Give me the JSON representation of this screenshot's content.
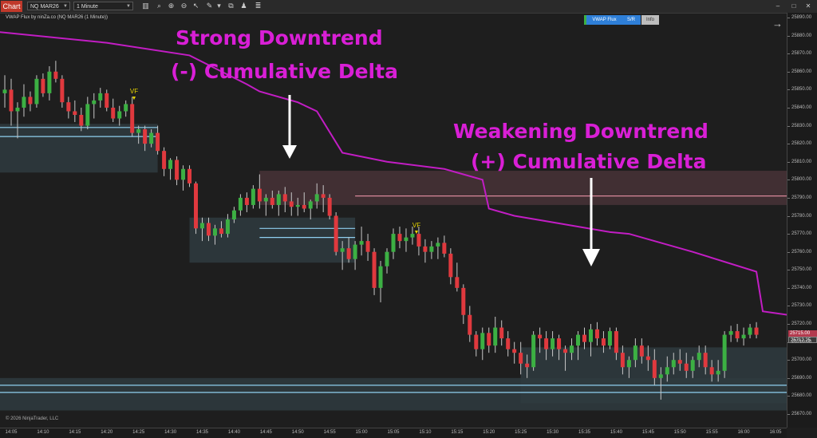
{
  "toolbar": {
    "chart_tab": "Chart",
    "instrument": "NQ MAR26",
    "interval": "1 Minute"
  },
  "indicator_label": "VWAP Flux by ninZa.co (NQ MAR26 (1 Minute))",
  "buttons": {
    "vwap_flux": "VWAP Flux",
    "sr": "S/R",
    "info": "Info"
  },
  "copyright": "© 2026 NinjaTrader, LLC",
  "annotations": {
    "strong_line1": "Strong Downtrend",
    "strong_line2": "(-) Cumulative Delta",
    "weak_line1": "Weakening Downtrend",
    "weak_line2": "(+) Cumulative Delta"
  },
  "signals": [
    {
      "label": "VF"
    },
    {
      "label": "VF"
    }
  ],
  "price_tags": {
    "last": "25715.00",
    "bid": "25712.25"
  },
  "colors": {
    "background": "#1e1e1e",
    "bull": "#3cb043",
    "bear": "#e0393e",
    "vwap": "#c21dc4",
    "annotation": "#d91fd6",
    "signal": "#e6d400",
    "support_zone": "#2f3b40",
    "resistance_zone": "#4a3338",
    "level_line": "#8fd0f0",
    "resistance_line": "#d8879a"
  },
  "chart_data": {
    "type": "candlestick",
    "instrument": "NQ MAR26",
    "timeframe": "1 Minute",
    "ylim": [
      25665,
      25900
    ],
    "yticks": [
      25670,
      25680,
      25690,
      25700,
      25710,
      25720,
      25730,
      25740,
      25750,
      25760,
      25770,
      25780,
      25790,
      25800,
      25810,
      25820,
      25830,
      25840,
      25850,
      25860,
      25870,
      25880,
      25890
    ],
    "xlim_minutes": [
      843,
      968
    ],
    "xticks": [
      "14:05",
      "14:10",
      "14:15",
      "14:20",
      "14:25",
      "14:30",
      "14:35",
      "14:40",
      "14:45",
      "14:50",
      "14:55",
      "15:00",
      "15:05",
      "15:10",
      "15:15",
      "15:20",
      "15:25",
      "15:30",
      "15:35",
      "15:40",
      "15:45",
      "15:50",
      "15:55",
      "16:00",
      "16:05"
    ],
    "vwap_line": [
      [
        843,
        25882
      ],
      [
        860,
        25876
      ],
      [
        873,
        25869
      ],
      [
        882,
        25853
      ],
      [
        884,
        25849
      ],
      [
        890,
        25843
      ],
      [
        893,
        25838
      ],
      [
        897,
        25815
      ],
      [
        904,
        25810
      ],
      [
        913,
        25806
      ],
      [
        919,
        25800
      ],
      [
        920,
        25784
      ],
      [
        924,
        25780
      ],
      [
        929,
        25777
      ],
      [
        939,
        25771
      ],
      [
        942,
        25770
      ],
      [
        952,
        25760
      ],
      [
        962,
        25749
      ],
      [
        963,
        25727
      ],
      [
        971,
        25723
      ],
      [
        980,
        25720
      ],
      [
        984,
        25717
      ],
      [
        986,
        25717
      ]
    ],
    "support_zones": [
      {
        "t0": 843,
        "t1": 868,
        "low": 25804,
        "high": 25831
      },
      {
        "t0": 873,
        "t1": 899,
        "low": 25754,
        "high": 25779
      },
      {
        "t0": 925,
        "t1": 967,
        "low": 25676,
        "high": 25707
      },
      {
        "t0": 843,
        "t1": 967,
        "low": 25672,
        "high": 25690
      }
    ],
    "resistance_zones": [
      {
        "t0": 884,
        "t1": 986,
        "low": 25786,
        "high": 25805
      },
      {
        "t0": 967,
        "t1": 986,
        "low": 25707,
        "high": 25722
      }
    ],
    "level_lines": [
      {
        "t0": 843,
        "t1": 868,
        "price": 25829
      },
      {
        "t0": 843,
        "t1": 868,
        "price": 25824
      },
      {
        "t0": 884,
        "t1": 899,
        "price": 25773
      },
      {
        "t0": 884,
        "t1": 899,
        "price": 25768
      },
      {
        "t0": 843,
        "t1": 967,
        "price": 25686
      },
      {
        "t0": 843,
        "t1": 967,
        "price": 25682
      },
      {
        "t0": 967,
        "t1": 986,
        "price": 25702
      },
      {
        "t0": 967,
        "t1": 986,
        "price": 25700
      }
    ],
    "resistance_lines": [
      {
        "t0": 899,
        "t1": 986,
        "price": 25791
      },
      {
        "t0": 967,
        "t1": 986,
        "price": 25714
      }
    ],
    "vf_signals": [
      {
        "t": 865,
        "price": 25841
      },
      {
        "t": 911,
        "price": 25773
      }
    ],
    "candles": [
      [
        844,
        25848,
        25858,
        25840,
        25850
      ],
      [
        845,
        25850,
        25856,
        25830,
        25838
      ],
      [
        846,
        25838,
        25843,
        25823,
        25840
      ],
      [
        847,
        25840,
        25853,
        25835,
        25846
      ],
      [
        848,
        25846,
        25849,
        25838,
        25842
      ],
      [
        849,
        25842,
        25858,
        25840,
        25856
      ],
      [
        850,
        25856,
        25859,
        25846,
        25848
      ],
      [
        851,
        25848,
        25863,
        25844,
        25860
      ],
      [
        852,
        25860,
        25866,
        25854,
        25856
      ],
      [
        853,
        25856,
        25858,
        25840,
        25843
      ],
      [
        854,
        25843,
        25846,
        25834,
        25838
      ],
      [
        855,
        25838,
        25844,
        25832,
        25836
      ],
      [
        856,
        25836,
        25840,
        25827,
        25830
      ],
      [
        857,
        25830,
        25846,
        25828,
        25842
      ],
      [
        858,
        25842,
        25848,
        25834,
        25844
      ],
      [
        859,
        25844,
        25851,
        25840,
        25848
      ],
      [
        860,
        25848,
        25850,
        25838,
        25840
      ],
      [
        861,
        25840,
        25845,
        25832,
        25834
      ],
      [
        862,
        25834,
        25841,
        25830,
        25838
      ],
      [
        863,
        25838,
        25844,
        25835,
        25842
      ],
      [
        864,
        25842,
        25846,
        25824,
        25826
      ],
      [
        865,
        25826,
        25830,
        25820,
        25828
      ],
      [
        866,
        25828,
        25830,
        25816,
        25820
      ],
      [
        867,
        25820,
        25828,
        25818,
        25826
      ],
      [
        868,
        25826,
        25830,
        25814,
        25816
      ],
      [
        869,
        25816,
        25818,
        25802,
        25806
      ],
      [
        870,
        25806,
        25812,
        25800,
        25811
      ],
      [
        871,
        25811,
        25813,
        25797,
        25800
      ],
      [
        872,
        25800,
        25808,
        25794,
        25806
      ],
      [
        873,
        25806,
        25808,
        25796,
        25798
      ],
      [
        874,
        25798,
        25799,
        25770,
        25773
      ],
      [
        875,
        25773,
        25779,
        25766,
        25776
      ],
      [
        876,
        25776,
        25779,
        25766,
        25769
      ],
      [
        877,
        25769,
        25775,
        25764,
        25773
      ],
      [
        878,
        25773,
        25777,
        25768,
        25770
      ],
      [
        879,
        25770,
        25781,
        25768,
        25778
      ],
      [
        880,
        25778,
        25785,
        25776,
        25783
      ],
      [
        881,
        25783,
        25792,
        25780,
        25790
      ],
      [
        882,
        25790,
        25793,
        25782,
        25786
      ],
      [
        883,
        25786,
        25797,
        25784,
        25795
      ],
      [
        884,
        25795,
        25803,
        25784,
        25788
      ],
      [
        885,
        25788,
        25792,
        25780,
        25790
      ],
      [
        886,
        25790,
        25794,
        25784,
        25786
      ],
      [
        887,
        25786,
        25794,
        25780,
        25792
      ],
      [
        888,
        25792,
        25796,
        25782,
        25788
      ],
      [
        889,
        25788,
        25793,
        25780,
        25785
      ],
      [
        890,
        25785,
        25790,
        25780,
        25786
      ],
      [
        891,
        25786,
        25793,
        25782,
        25784
      ],
      [
        892,
        25784,
        25789,
        25778,
        25788
      ],
      [
        893,
        25788,
        25798,
        25784,
        25792
      ],
      [
        894,
        25792,
        25797,
        25782,
        25790
      ],
      [
        895,
        25790,
        25792,
        25778,
        25780
      ],
      [
        896,
        25780,
        25782,
        25758,
        25760
      ],
      [
        897,
        25760,
        25766,
        25750,
        25762
      ],
      [
        898,
        25762,
        25768,
        25754,
        25756
      ],
      [
        899,
        25756,
        25766,
        25750,
        25764
      ],
      [
        900,
        25764,
        25774,
        25758,
        25766
      ],
      [
        901,
        25766,
        25770,
        25755,
        25760
      ],
      [
        902,
        25760,
        25762,
        25736,
        25740
      ],
      [
        903,
        25740,
        25755,
        25732,
        25752
      ],
      [
        904,
        25752,
        25762,
        25748,
        25760
      ],
      [
        905,
        25760,
        25773,
        25756,
        25770
      ],
      [
        906,
        25770,
        25774,
        25762,
        25766
      ],
      [
        907,
        25766,
        25773,
        25760,
        25768
      ],
      [
        908,
        25768,
        25774,
        25764,
        25770
      ],
      [
        909,
        25770,
        25774,
        25758,
        25763
      ],
      [
        910,
        25763,
        25767,
        25754,
        25760
      ],
      [
        911,
        25760,
        25766,
        25756,
        25763
      ],
      [
        912,
        25763,
        25768,
        25756,
        25765
      ],
      [
        913,
        25765,
        25769,
        25757,
        25759
      ],
      [
        914,
        25759,
        25762,
        25742,
        25746
      ],
      [
        915,
        25746,
        25754,
        25738,
        25740
      ],
      [
        916,
        25740,
        25742,
        25720,
        25725
      ],
      [
        917,
        25725,
        25730,
        25710,
        25714
      ],
      [
        918,
        25714,
        25716,
        25702,
        25706
      ],
      [
        919,
        25706,
        25718,
        25700,
        25715
      ],
      [
        920,
        25715,
        25718,
        25704,
        25708
      ],
      [
        921,
        25708,
        25724,
        25704,
        25718
      ],
      [
        922,
        25718,
        25722,
        25708,
        25712
      ],
      [
        923,
        25712,
        25716,
        25702,
        25706
      ],
      [
        924,
        25706,
        25710,
        25698,
        25704
      ],
      [
        925,
        25704,
        25710,
        25692,
        25698
      ],
      [
        926,
        25698,
        25703,
        25690,
        25696
      ],
      [
        927,
        25696,
        25716,
        25694,
        25714
      ],
      [
        928,
        25714,
        25718,
        25704,
        25712
      ],
      [
        929,
        25712,
        25716,
        25700,
        25706
      ],
      [
        930,
        25706,
        25716,
        25702,
        25712
      ],
      [
        931,
        25712,
        25714,
        25700,
        25706
      ],
      [
        932,
        25706,
        25708,
        25694,
        25704
      ],
      [
        933,
        25704,
        25712,
        25700,
        25708
      ],
      [
        934,
        25708,
        25716,
        25700,
        25714
      ],
      [
        935,
        25714,
        25718,
        25706,
        25710
      ],
      [
        936,
        25710,
        25720,
        25702,
        25717
      ],
      [
        937,
        25717,
        25721,
        25708,
        25712
      ],
      [
        938,
        25712,
        25716,
        25704,
        25708
      ],
      [
        939,
        25708,
        25718,
        25706,
        25716
      ],
      [
        940,
        25716,
        25718,
        25700,
        25704
      ],
      [
        941,
        25704,
        25708,
        25692,
        25696
      ],
      [
        942,
        25696,
        25702,
        25690,
        25700
      ],
      [
        943,
        25700,
        25712,
        25696,
        25708
      ],
      [
        944,
        25708,
        25712,
        25698,
        25702
      ],
      [
        945,
        25702,
        25708,
        25694,
        25700
      ],
      [
        946,
        25700,
        25706,
        25686,
        25690
      ],
      [
        947,
        25690,
        25696,
        25678,
        25692
      ],
      [
        948,
        25692,
        25702,
        25688,
        25696
      ],
      [
        949,
        25696,
        25704,
        25692,
        25700
      ],
      [
        950,
        25700,
        25706,
        25694,
        25698
      ],
      [
        951,
        25698,
        25704,
        25690,
        25694
      ],
      [
        952,
        25694,
        25702,
        25690,
        25700
      ],
      [
        953,
        25700,
        25708,
        25696,
        25704
      ],
      [
        954,
        25704,
        25708,
        25692,
        25696
      ],
      [
        955,
        25696,
        25700,
        25688,
        25692
      ],
      [
        956,
        25692,
        25700,
        25688,
        25694
      ],
      [
        957,
        25694,
        25716,
        25690,
        25714
      ],
      [
        958,
        25714,
        25719,
        25710,
        25716
      ],
      [
        959,
        25716,
        25720,
        25710,
        25712
      ],
      [
        960,
        25712,
        25718,
        25708,
        25714
      ],
      [
        961,
        25714,
        25720,
        25712,
        25718
      ],
      [
        962,
        25718,
        25721,
        25712,
        25714
      ]
    ]
  }
}
